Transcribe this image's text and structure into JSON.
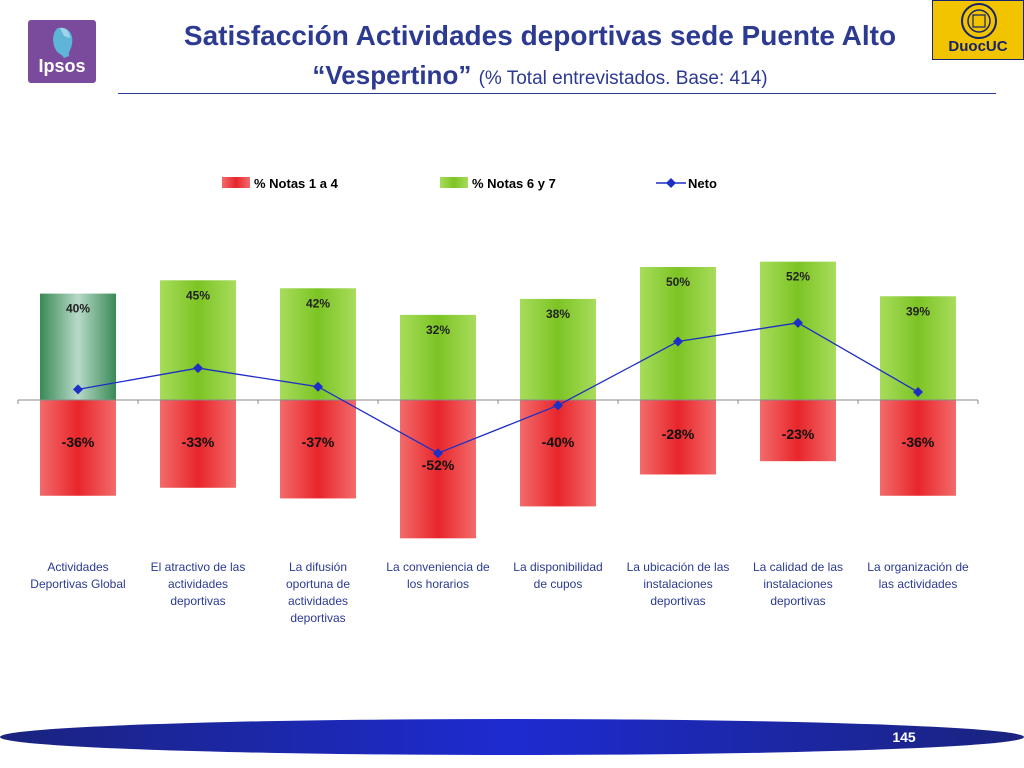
{
  "header": {
    "title_line1": "Satisfacción Actividades deportivas sede Puente Alto",
    "title_line2": "“Vespertino”",
    "title_sub": "(% Total entrevistados. Base: 414)",
    "logo_left": "Ipsos",
    "logo_right": "DuocUC"
  },
  "footer": {
    "page_number": "145"
  },
  "colors": {
    "title": "#2c3a92",
    "neg_bar": "#e8262b",
    "pos_bar": "#7cc424",
    "global_bar": "#3a8a56",
    "neto_line": "#1d2fc4"
  },
  "chart_data": {
    "type": "bar",
    "categories": [
      [
        "Actividades",
        "Deportivas Global"
      ],
      [
        "El atractivo de las",
        "actividades",
        "deportivas"
      ],
      [
        "La difusión",
        "oportuna de",
        "actividades",
        "deportivas"
      ],
      [
        "La conveniencia de",
        "los horarios"
      ],
      [
        "La disponibilidad",
        "de cupos"
      ],
      [
        "La ubicación de las",
        "instalaciones",
        "deportivas"
      ],
      [
        "La calidad de las",
        "instalaciones",
        "deportivas"
      ],
      [
        "La organización de",
        "las actividades"
      ]
    ],
    "series": [
      {
        "name": "% Notas 1 a 4",
        "values": [
          -36,
          -33,
          -37,
          -52,
          -40,
          -28,
          -23,
          -36
        ],
        "labels": [
          "-36%",
          "-33%",
          "-37%",
          "-52%",
          "-40%",
          "-28%",
          "-23%",
          "-36%"
        ]
      },
      {
        "name": "% Notas 6 y 7",
        "values": [
          40,
          45,
          42,
          32,
          38,
          50,
          52,
          39
        ],
        "labels": [
          "40%",
          "45%",
          "42%",
          "32%",
          "38%",
          "50%",
          "52%",
          "39%"
        ]
      },
      {
        "name": "Neto",
        "type": "line",
        "values": [
          4,
          12,
          5,
          -20,
          -2,
          22,
          29,
          3
        ]
      }
    ],
    "ylim": [
      -53,
      53
    ],
    "legend_position": "top"
  }
}
